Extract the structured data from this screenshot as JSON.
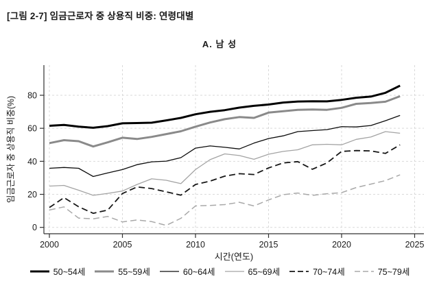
{
  "header": {
    "title": "[그림 2-7] 임금근로자 중 상용직 비중: 연령대별"
  },
  "chart_data": {
    "type": "line",
    "title": "A. 남 성",
    "xlabel": "시간(연도)",
    "ylabel": "임금근로자 중 상용직 비중(%)",
    "x": [
      2000,
      2001,
      2002,
      2003,
      2004,
      2005,
      2006,
      2007,
      2008,
      2009,
      2010,
      2011,
      2012,
      2013,
      2014,
      2015,
      2016,
      2017,
      2018,
      2019,
      2020,
      2021,
      2022,
      2023,
      2024
    ],
    "xticks": [
      2000,
      2005,
      2010,
      2015,
      2020,
      2025
    ],
    "yticks": [
      0,
      20,
      40,
      60,
      80
    ],
    "xlim": [
      1999.6,
      2026.3
    ],
    "ylim": [
      0,
      98
    ],
    "grid": "dashed light-gray horizontal and vertical",
    "legend_position": "bottom",
    "series": [
      {
        "name": "50~54세",
        "color": "#000000",
        "width": 3,
        "dash": null,
        "values": [
          61.5,
          62,
          61,
          60.3,
          61.3,
          63,
          63.2,
          63.4,
          64.8,
          66.3,
          68.5,
          70,
          71,
          72.5,
          73.6,
          74.4,
          75.6,
          76.2,
          76.4,
          76.3,
          77.2,
          78.5,
          79.2,
          81.5,
          85.8
        ]
      },
      {
        "name": "55~59세",
        "color": "#8a8a8a",
        "width": 3,
        "dash": null,
        "values": [
          51,
          52.8,
          52.2,
          49,
          51.5,
          54.3,
          53.5,
          54.8,
          56.5,
          58.2,
          61,
          63.5,
          65.5,
          66.8,
          66.3,
          69.5,
          70.3,
          71.2,
          71.4,
          71.2,
          72.4,
          74.8,
          75.3,
          76.1,
          79.4
        ]
      },
      {
        "name": "60~64세",
        "color": "#0a0a0a",
        "width": 1.3,
        "dash": null,
        "values": [
          35.8,
          36.3,
          35.8,
          30.8,
          33,
          35,
          38,
          39.7,
          40.1,
          42.2,
          48,
          49.3,
          48.5,
          47.5,
          51,
          53.8,
          55.4,
          58,
          58.6,
          59.2,
          61,
          60.8,
          61.7,
          64.6,
          67.8
        ]
      },
      {
        "name": "65~69세",
        "color": "#a3a3a3",
        "width": 1.3,
        "dash": null,
        "values": [
          25,
          25.4,
          22.5,
          19.4,
          20.6,
          22,
          26,
          29.4,
          28.5,
          26.5,
          35,
          41,
          44.5,
          43.5,
          41.2,
          44.3,
          46,
          47,
          50,
          50.3,
          50,
          53.3,
          54.7,
          58,
          57
        ]
      },
      {
        "name": "70~74세",
        "color": "#161616",
        "width": 1.8,
        "dash": "9 5",
        "values": [
          12,
          18,
          12.5,
          8.5,
          10.5,
          20.5,
          24.5,
          23.5,
          21.5,
          19.5,
          26,
          28,
          31,
          32.5,
          32,
          36,
          39,
          39.8,
          35.2,
          39,
          46,
          46.5,
          46.3,
          44.8,
          50
        ]
      },
      {
        "name": "75~79세",
        "color": "#a8a8a8",
        "width": 1.5,
        "dash": "9 5",
        "values": [
          10.5,
          12.4,
          5.6,
          5.2,
          6.6,
          3.3,
          4.5,
          3.5,
          1.2,
          5.5,
          13,
          13.3,
          13.8,
          15.2,
          13,
          16.6,
          19.8,
          20.8,
          19.4,
          20.4,
          21,
          24.1,
          26.2,
          28.3,
          31.8
        ]
      }
    ],
    "colors": {
      "axis": "#303030",
      "grid": "#d9d9d9",
      "tick_text": "#1a1a1a"
    }
  }
}
